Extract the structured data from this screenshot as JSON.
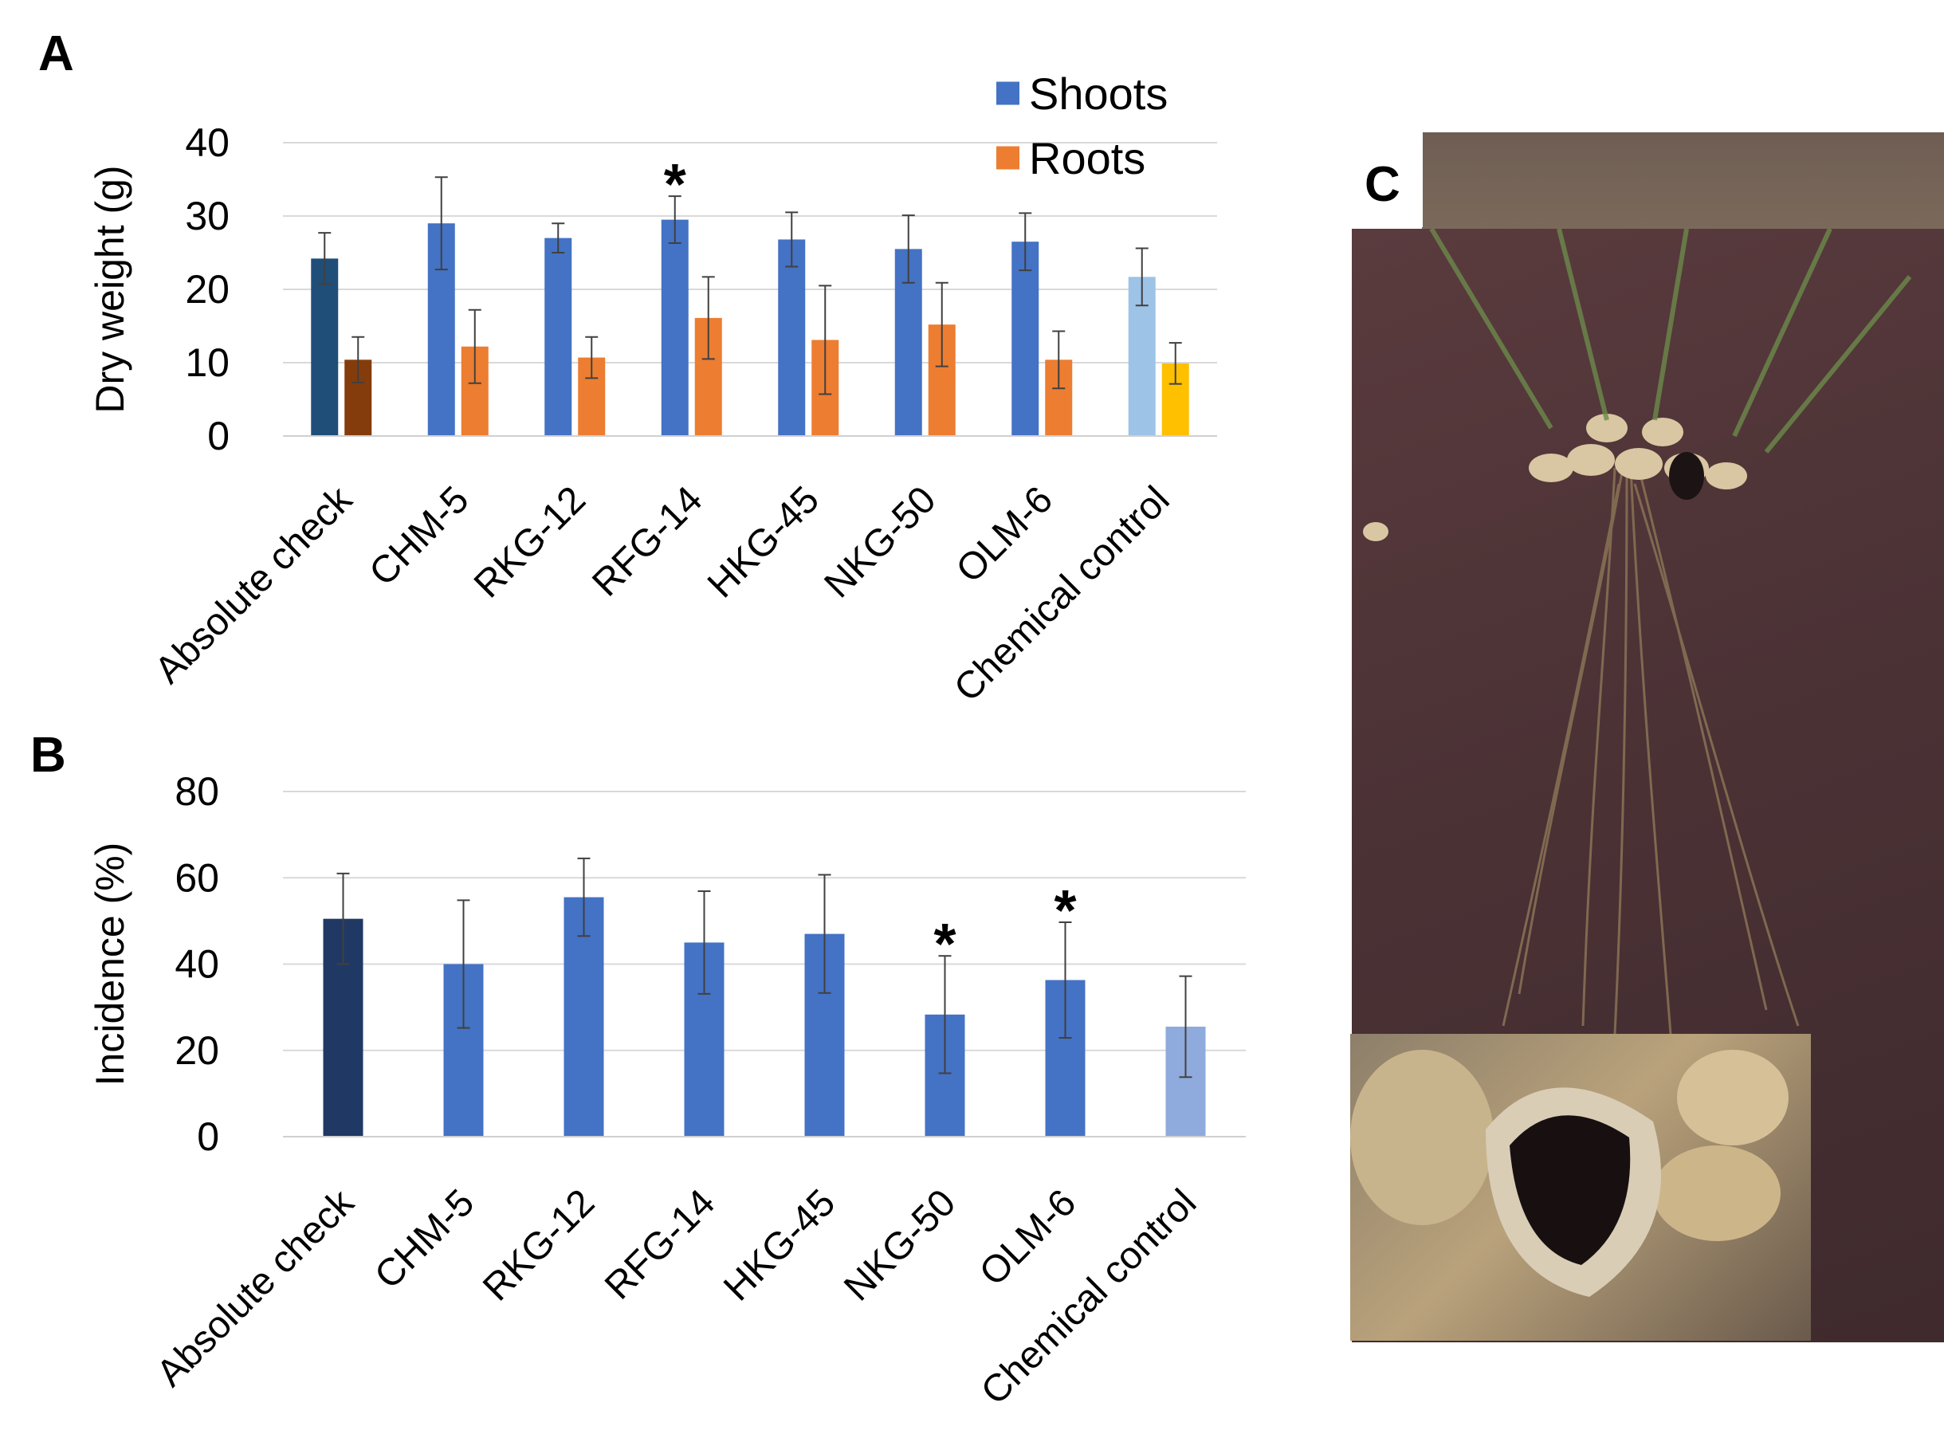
{
  "panels": {
    "a_letter": "A",
    "b_letter": "B",
    "c_letter": "C"
  },
  "chart_data": [
    {
      "panel": "A",
      "type": "bar",
      "categories": [
        "Absolute check",
        "CHM-5",
        "RKG-12",
        "RFG-14",
        "HKG-45",
        "NKG-50",
        "OLM-6",
        "Chemical control"
      ],
      "ylabel": "Dry weight (g)",
      "ylim": [
        0,
        40
      ],
      "yticks": [
        0,
        10,
        20,
        30,
        40
      ],
      "grid": true,
      "legend_position": "top-right",
      "series": [
        {
          "name": "Shoots",
          "color": "#4472C4",
          "point_colors": [
            "#1F4E79",
            "#4472C4",
            "#4472C4",
            "#4472C4",
            "#4472C4",
            "#4472C4",
            "#4472C4",
            "#9DC3E6"
          ],
          "values": [
            24.2,
            29.0,
            27.0,
            29.5,
            26.8,
            25.5,
            26.5,
            21.7
          ],
          "errors": [
            3.5,
            6.3,
            2.0,
            3.2,
            3.7,
            4.6,
            3.9,
            3.9
          ]
        },
        {
          "name": "Roots",
          "color": "#ED7D31",
          "point_colors": [
            "#843C0C",
            "#ED7D31",
            "#ED7D31",
            "#ED7D31",
            "#ED7D31",
            "#ED7D31",
            "#ED7D31",
            "#FFC000"
          ],
          "values": [
            10.4,
            12.2,
            10.7,
            16.1,
            13.1,
            15.2,
            10.4,
            9.9
          ],
          "errors": [
            3.1,
            5.0,
            2.8,
            5.6,
            7.4,
            5.7,
            3.9,
            2.8
          ]
        }
      ],
      "annotations": [
        {
          "text": "*",
          "category": "RFG-14",
          "series": "Shoots"
        }
      ]
    },
    {
      "panel": "B",
      "type": "bar",
      "categories": [
        "Absolute check",
        "CHM-5",
        "RKG-12",
        "RFG-14",
        "HKG-45",
        "NKG-50",
        "OLM-6",
        "Chemical control"
      ],
      "ylabel": "Incidence (%)",
      "ylim": [
        0,
        80
      ],
      "yticks": [
        0,
        20,
        40,
        60,
        80
      ],
      "grid": true,
      "series": [
        {
          "point_colors": [
            "#203864",
            "#4472C4",
            "#4472C4",
            "#4472C4",
            "#4472C4",
            "#4472C4",
            "#4472C4",
            "#8FAADC"
          ],
          "values": [
            50.5,
            40.0,
            55.5,
            45.0,
            47.0,
            28.3,
            36.3,
            25.5
          ],
          "errors": [
            10.5,
            14.8,
            9.0,
            11.9,
            13.7,
            13.6,
            13.4,
            11.7
          ]
        }
      ],
      "annotations": [
        {
          "text": "*",
          "category": "NKG-50"
        },
        {
          "text": "*",
          "category": "OLM-6"
        }
      ]
    }
  ]
}
